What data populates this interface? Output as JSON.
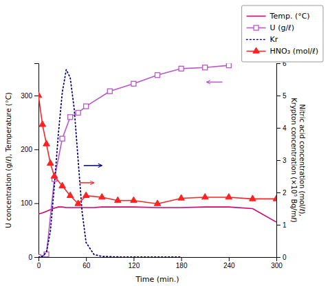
{
  "chart_data": {
    "type": "line",
    "xlabel": "Time (min.)",
    "ylabel": "U concentration (g/ℓ), Temperature (°C)",
    "y2label": "Nitric acid concentration (mol/ℓ),\nKrypton concentration (×10⁵ Bq/mℓ)",
    "xlim": [
      0,
      300
    ],
    "ylim": [
      0,
      360
    ],
    "y2lim": [
      0,
      6
    ],
    "xticks": [
      0,
      60,
      120,
      180,
      240,
      300
    ],
    "yticks": [
      0,
      100,
      200,
      300
    ],
    "y2ticks": [
      0,
      1,
      2,
      3,
      4,
      5,
      6
    ],
    "grid": false,
    "legend": "upper right",
    "series": [
      {
        "name": "Temp. (°C)",
        "color": "#d4006e",
        "line_style": "solid",
        "x": [
          0,
          5,
          10,
          15,
          20,
          25,
          30,
          35,
          40,
          50,
          60,
          70,
          80,
          90,
          100,
          120,
          150,
          180,
          210,
          240,
          270,
          300
        ],
        "values": [
          80,
          82,
          85,
          88,
          91,
          93,
          93,
          92,
          92,
          92,
          92,
          92,
          93,
          93,
          93,
          93,
          92,
          92,
          93,
          93,
          90,
          65
        ]
      },
      {
        "name": "U (g/ℓ)",
        "color": "#bb55cc",
        "line_style": "solid",
        "marker": "square",
        "x": [
          0,
          10,
          20,
          30,
          40,
          50,
          60,
          90,
          120,
          150,
          180,
          210,
          240
        ],
        "values": [
          0,
          5,
          145,
          220,
          260,
          268,
          280,
          308,
          322,
          338,
          350,
          352,
          356
        ]
      },
      {
        "name": "Kr",
        "color": "#000080",
        "line_style": "dotted",
        "axis": "y2",
        "x": [
          0,
          5,
          10,
          15,
          20,
          25,
          30,
          35,
          40,
          45,
          50,
          55,
          60,
          70,
          80,
          100,
          120,
          150,
          180
        ],
        "values": [
          0.0,
          0.02,
          0.15,
          0.8,
          2.2,
          3.8,
          5.1,
          5.8,
          5.55,
          4.6,
          3.0,
          1.4,
          0.45,
          0.08,
          0.02,
          0.005,
          0.002,
          0.001,
          0.0005
        ]
      },
      {
        "name": "HNO₃ (mol/ℓ)",
        "color": "#ff2222",
        "line_style": "solid",
        "marker": "triangle",
        "axis": "y2",
        "x": [
          0,
          5,
          10,
          15,
          20,
          30,
          40,
          50,
          60,
          80,
          100,
          120,
          150,
          180,
          210,
          240,
          270,
          300
        ],
        "values": [
          5.0,
          4.1,
          3.5,
          2.9,
          2.5,
          2.2,
          1.9,
          1.65,
          1.9,
          1.85,
          1.75,
          1.75,
          1.65,
          1.82,
          1.85,
          1.85,
          1.8,
          1.8
        ]
      }
    ],
    "annotations": [
      {
        "type": "arrow",
        "color": "#000080",
        "x": [
          57,
          80
        ],
        "y": [
          170,
          170
        ]
      },
      {
        "type": "arrow",
        "color": "#ff2222",
        "x": [
          52,
          70
        ],
        "y": [
          138,
          138
        ]
      },
      {
        "type": "arrow",
        "color": "#bb55cc",
        "x": [
          232,
          212
        ],
        "y": [
          325,
          325
        ]
      }
    ]
  }
}
